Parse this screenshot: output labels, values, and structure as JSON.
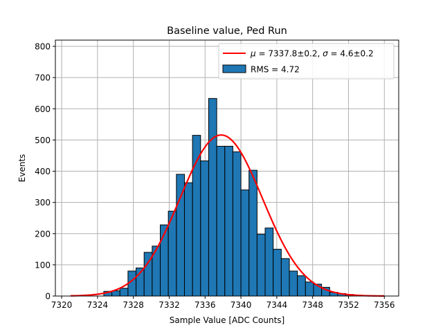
{
  "chart_data": {
    "type": "bar",
    "title": "Baseline value, Ped Run",
    "xlabel": "Sample Value [ADC Counts]",
    "ylabel": "Events",
    "xlim": [
      7319.3,
      7357.6
    ],
    "ylim": [
      0,
      820
    ],
    "grid": true,
    "legend_position": "top-right",
    "x_ticks": [
      7320,
      7324,
      7328,
      7332,
      7336,
      7340,
      7344,
      7348,
      7352,
      7356
    ],
    "y_ticks": [
      0,
      100,
      200,
      300,
      400,
      500,
      600,
      700,
      800
    ],
    "bin_width": 0.9,
    "bin_start": 7324.7,
    "counts": [
      15,
      17,
      25,
      80,
      90,
      140,
      160,
      228,
      272,
      390,
      363,
      515,
      433,
      633,
      480,
      480,
      462,
      340,
      403,
      198,
      218,
      150,
      120,
      80,
      65,
      45,
      38,
      28,
      12,
      8,
      5,
      3
    ],
    "series": [
      {
        "name": "histogram",
        "legend_label": "RMS = 4.72",
        "color": "#1f77b4",
        "edge_color": "#000000"
      },
      {
        "name": "gaussian-fit",
        "legend_prefix_mu": "μ",
        "legend_mu_text": " = 7337.8±0.2, ",
        "legend_prefix_sigma": "σ",
        "legend_sigma_text": " = 4.6±0.2",
        "color": "#ff0000",
        "mu": 7337.8,
        "sigma": 4.6,
        "amplitude": 516,
        "x_range": [
          7321,
          7356
        ]
      }
    ]
  }
}
